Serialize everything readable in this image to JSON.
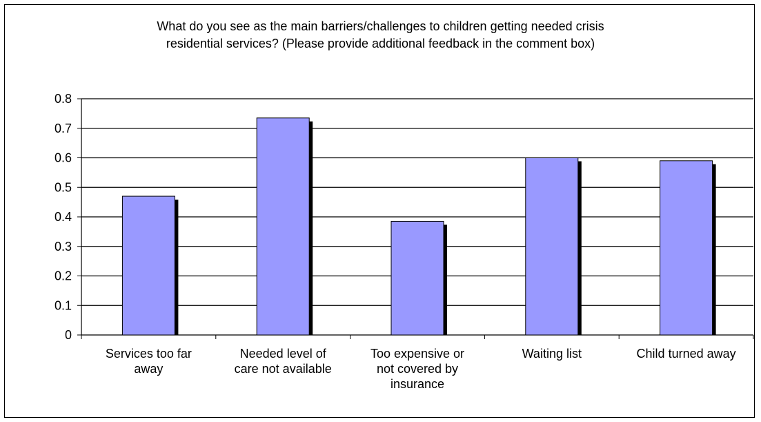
{
  "chart_data": {
    "type": "bar",
    "title_lines": [
      "What do you see as the main barriers/challenges to children getting needed crisis",
      "residential services? (Please provide additional feedback in the comment box)"
    ],
    "categories": [
      [
        "Services too far",
        "away"
      ],
      [
        "Needed level of",
        "care not available"
      ],
      [
        "Too expensive or",
        "not covered by",
        "insurance"
      ],
      [
        "Waiting list"
      ],
      [
        "Child turned away"
      ]
    ],
    "values": [
      0.47,
      0.735,
      0.385,
      0.6,
      0.59
    ],
    "yticks": [
      "0",
      "0.1",
      "0.2",
      "0.3",
      "0.4",
      "0.5",
      "0.6",
      "0.7",
      "0.8"
    ],
    "ylim": [
      0,
      0.8
    ],
    "grid": true,
    "colors": {
      "bar": "#9999ff",
      "shadow": "#000000",
      "grid": "#000000"
    }
  }
}
